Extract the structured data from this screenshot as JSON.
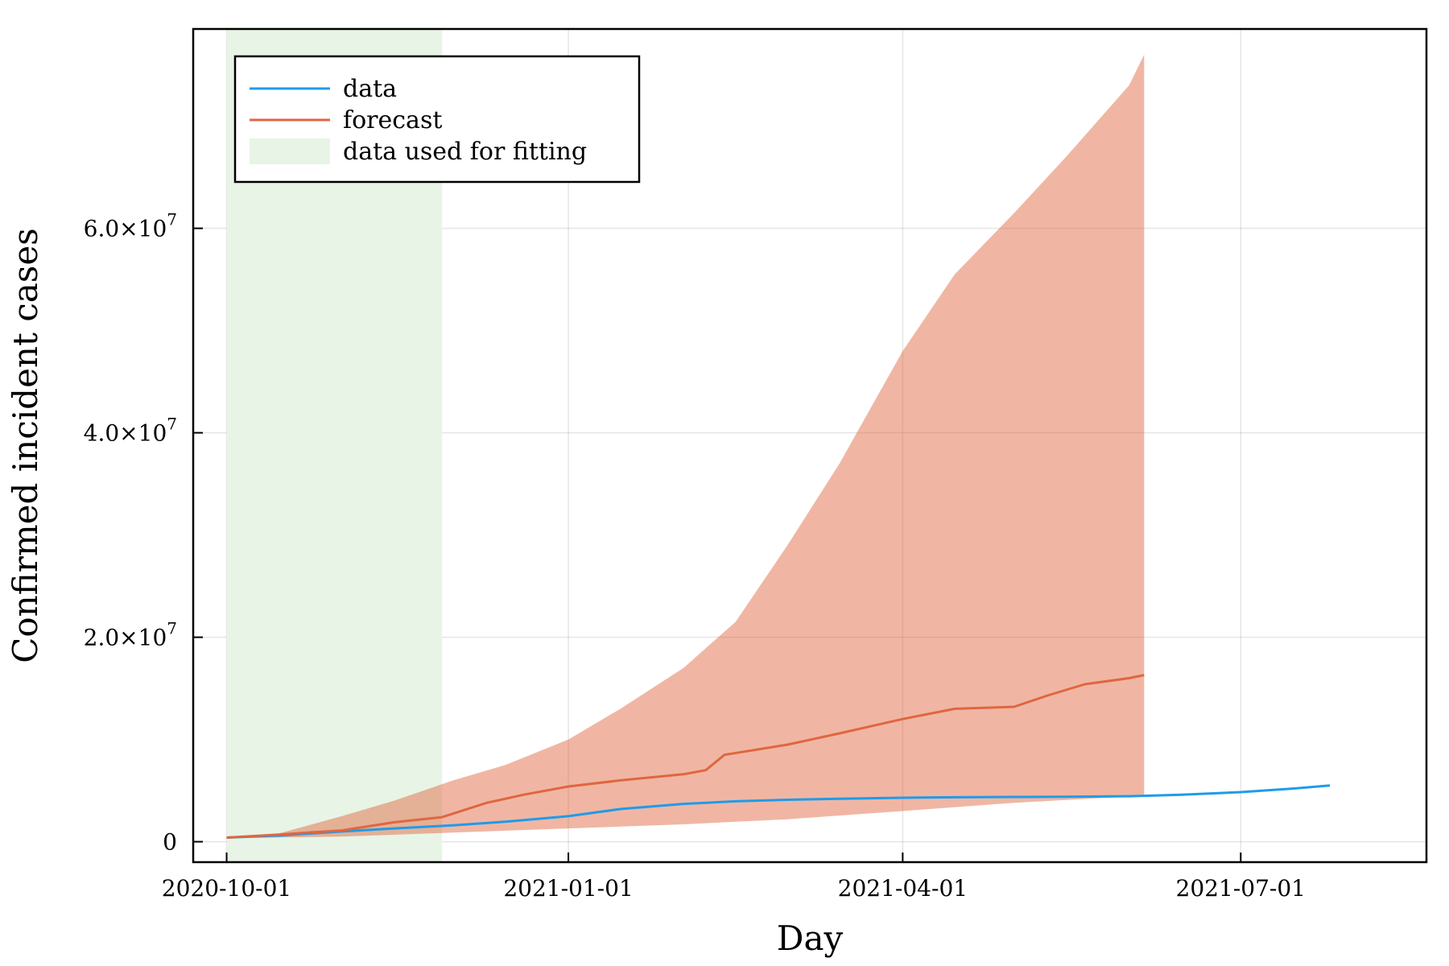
{
  "chart_data": {
    "type": "line",
    "xlabel": "Day",
    "ylabel": "Confirmed incident cases",
    "x_ticks": [
      "2020-10-01",
      "2021-01-01",
      "2021-04-01",
      "2021-07-01"
    ],
    "y_ticks": [
      {
        "value": 0,
        "label": "0"
      },
      {
        "value": 20000000,
        "label": "2.0×10",
        "exp": "7"
      },
      {
        "value": 40000000,
        "label": "4.0×10",
        "exp": "7"
      },
      {
        "value": 60000000,
        "label": "6.0×10",
        "exp": "7"
      }
    ],
    "xlim": [
      "2020-09-22",
      "2021-08-20"
    ],
    "ylim": [
      -2000000,
      79500000
    ],
    "grid": true,
    "legend_position": "top-left",
    "fit_window": {
      "name": "data used for fitting",
      "start": "2020-10-01",
      "end": "2020-11-28",
      "color": "#e8f4e6"
    },
    "series": [
      {
        "name": "data",
        "color": "#1f9bea",
        "points": [
          [
            "2020-10-01",
            400000
          ],
          [
            "2020-10-15",
            600000
          ],
          [
            "2020-11-01",
            1000000
          ],
          [
            "2020-11-15",
            1300000
          ],
          [
            "2020-12-01",
            1600000
          ],
          [
            "2020-12-15",
            1950000
          ],
          [
            "2021-01-01",
            2500000
          ],
          [
            "2021-01-15",
            3200000
          ],
          [
            "2021-02-01",
            3700000
          ],
          [
            "2021-02-15",
            3950000
          ],
          [
            "2021-03-01",
            4100000
          ],
          [
            "2021-03-15",
            4200000
          ],
          [
            "2021-04-01",
            4300000
          ],
          [
            "2021-04-15",
            4350000
          ],
          [
            "2021-05-01",
            4380000
          ],
          [
            "2021-05-15",
            4400000
          ],
          [
            "2021-06-01",
            4450000
          ],
          [
            "2021-06-15",
            4600000
          ],
          [
            "2021-07-01",
            4850000
          ],
          [
            "2021-07-15",
            5200000
          ],
          [
            "2021-07-25",
            5500000
          ]
        ]
      },
      {
        "name": "forecast",
        "color": "#e0663f",
        "points": [
          [
            "2020-10-01",
            400000
          ],
          [
            "2020-10-15",
            700000
          ],
          [
            "2020-11-01",
            1100000
          ],
          [
            "2020-11-15",
            1900000
          ],
          [
            "2020-11-28",
            2400000
          ],
          [
            "2020-12-10",
            3800000
          ],
          [
            "2020-12-20",
            4600000
          ],
          [
            "2021-01-01",
            5400000
          ],
          [
            "2021-01-15",
            6000000
          ],
          [
            "2021-02-01",
            6600000
          ],
          [
            "2021-02-07",
            7000000
          ],
          [
            "2021-02-12",
            8500000
          ],
          [
            "2021-03-01",
            9500000
          ],
          [
            "2021-03-15",
            10600000
          ],
          [
            "2021-04-01",
            12000000
          ],
          [
            "2021-04-15",
            13000000
          ],
          [
            "2021-05-01",
            13200000
          ],
          [
            "2021-05-10",
            14300000
          ],
          [
            "2021-05-20",
            15400000
          ],
          [
            "2021-06-01",
            16000000
          ],
          [
            "2021-06-05",
            16300000
          ]
        ]
      }
    ],
    "forecast_band": {
      "color": "#e0663f",
      "opacity": 0.48,
      "upper": [
        [
          "2020-10-01",
          400000
        ],
        [
          "2020-10-15",
          800000
        ],
        [
          "2020-11-01",
          2500000
        ],
        [
          "2020-11-15",
          4000000
        ],
        [
          "2020-12-01",
          6000000
        ],
        [
          "2020-12-15",
          7500000
        ],
        [
          "2021-01-01",
          10000000
        ],
        [
          "2021-01-15",
          13000000
        ],
        [
          "2021-02-01",
          17000000
        ],
        [
          "2021-02-15",
          21500000
        ],
        [
          "2021-03-01",
          29000000
        ],
        [
          "2021-03-15",
          37000000
        ],
        [
          "2021-04-01",
          48000000
        ],
        [
          "2021-04-15",
          55500000
        ],
        [
          "2021-05-01",
          61500000
        ],
        [
          "2021-05-15",
          67000000
        ],
        [
          "2021-06-01",
          74000000
        ],
        [
          "2021-06-05",
          77000000
        ]
      ],
      "lower": [
        [
          "2020-10-01",
          350000
        ],
        [
          "2020-11-01",
          500000
        ],
        [
          "2020-12-01",
          900000
        ],
        [
          "2021-01-01",
          1300000
        ],
        [
          "2021-02-01",
          1700000
        ],
        [
          "2021-03-01",
          2200000
        ],
        [
          "2021-04-01",
          3000000
        ],
        [
          "2021-05-01",
          3800000
        ],
        [
          "2021-06-05",
          4500000
        ]
      ]
    }
  }
}
